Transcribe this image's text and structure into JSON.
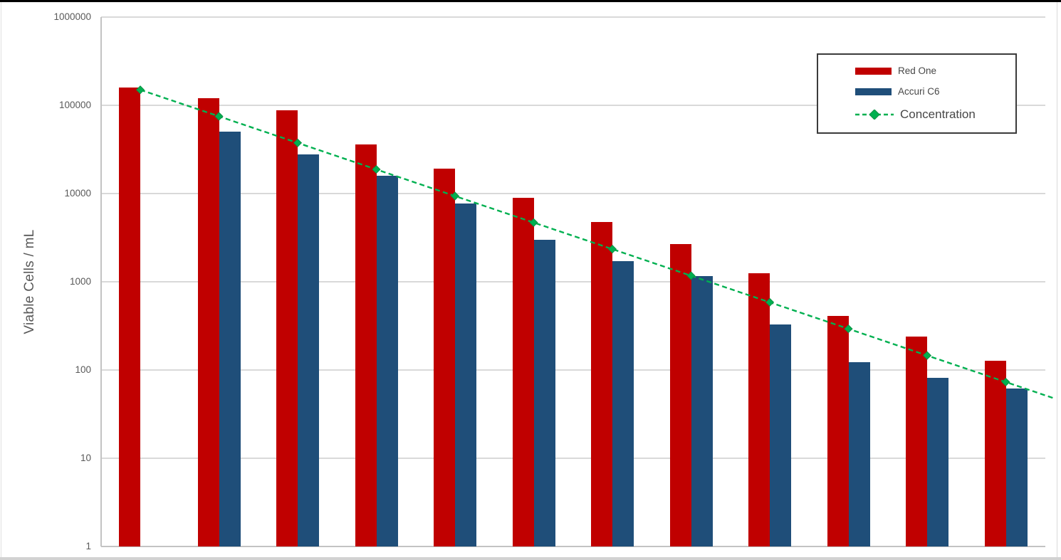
{
  "chart_data": {
    "type": "bar",
    "subtype": "combo bar + line, logarithmic y axis",
    "title": "",
    "xlabel": "",
    "ylabel": "Viable Cells / mL",
    "y_scale": "log10",
    "ylim": [
      1,
      1000000
    ],
    "ytick_labels": [
      "1",
      "10",
      "100",
      "1000",
      "10000",
      "100000",
      "1000000"
    ],
    "x_tick_labels_visible": false,
    "num_groups": 12,
    "grid": "horizontal gridline at each decade",
    "legend": {
      "position": "top-right",
      "bordered": true
    },
    "series": [
      {
        "name": "Red One",
        "type": "bar",
        "color": "#C00000",
        "values": [
          160000,
          120000,
          88000,
          36000,
          19000,
          9000,
          4800,
          2700,
          1250,
          410,
          240,
          128
        ]
      },
      {
        "name": "Accuri C6",
        "type": "bar",
        "color": "#1F4E79",
        "values": [
          null,
          50000,
          28000,
          16000,
          7700,
          3000,
          1700,
          1150,
          330,
          122,
          82,
          62
        ]
      },
      {
        "name": "Concentration",
        "type": "line",
        "line_style": "dashed",
        "marker": "diamond",
        "color": "#00B050",
        "marker_edge_color": "#0a9144",
        "values": [
          150000,
          75000,
          37500,
          18750,
          9375,
          4688,
          2344,
          1172,
          586,
          293,
          146,
          73
        ]
      }
    ],
    "palette": {
      "gridline": "#D9D9D9",
      "axis_line": "#C3C3C3",
      "tick_text": "#595959",
      "legend_text": "#474747",
      "legend_border": "#3b3b3b",
      "top_edge": "#000000",
      "bottom_edge": "#d2d2d2"
    }
  }
}
